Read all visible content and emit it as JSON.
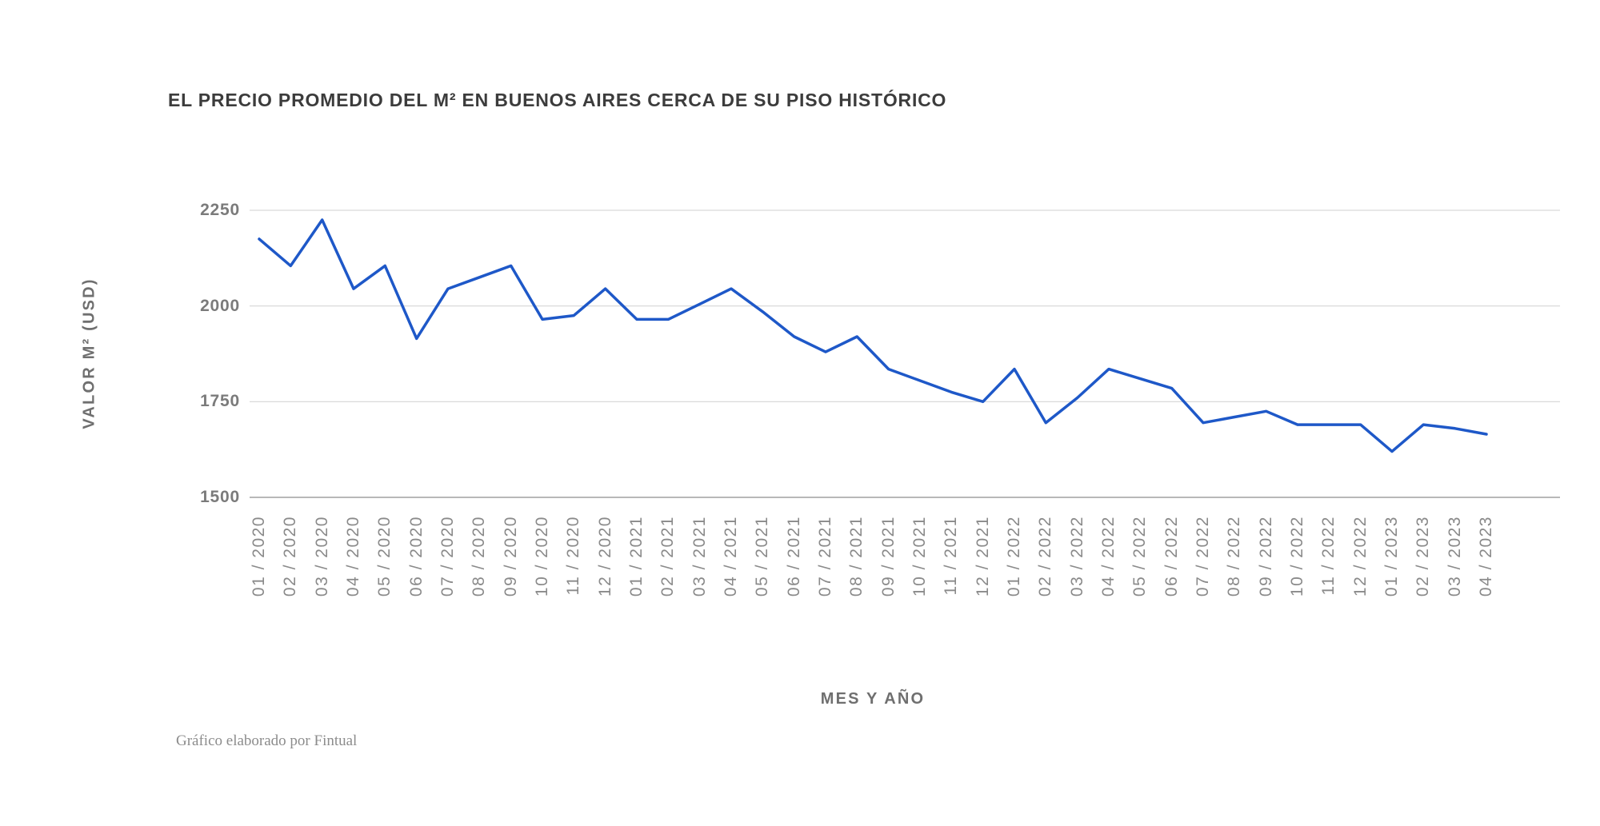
{
  "header": {
    "title": "EL PRECIO PROMEDIO DEL M² EN BUENOS AIRES CERCA DE SU PISO HISTÓRICO"
  },
  "footer": {
    "credit": "Gráfico elaborado por Fintual"
  },
  "colors": {
    "line": "#1E58C8",
    "gridline": "#D9D9D9",
    "axis_base": "#B8B8B8",
    "title_text": "#3C3C3C",
    "axis_title_text": "#6F6F6F",
    "tick_text": "#7B7B7B",
    "footer_text": "#8C8C8C",
    "background": "#FFFFFF"
  },
  "chart_data": {
    "type": "line",
    "title": "EL PRECIO PROMEDIO DEL M² EN BUENOS AIRES CERCA DE SU PISO HISTÓRICO",
    "xlabel": "MES Y AÑO",
    "ylabel": "VALOR M² (USD)",
    "categories": [
      "01 / 2020",
      "02 / 2020",
      "03 / 2020",
      "04 / 2020",
      "05 / 2020",
      "06 / 2020",
      "07 / 2020",
      "08 / 2020",
      "09 / 2020",
      "10 / 2020",
      "11 / 2020",
      "12 / 2020",
      "01 / 2021",
      "02 / 2021",
      "03 / 2021",
      "04 / 2021",
      "05 / 2021",
      "06 / 2021",
      "07 / 2021",
      "08 / 2021",
      "09 / 2021",
      "10 / 2021",
      "11 / 2021",
      "12 / 2021",
      "01 / 2022",
      "02 / 2022",
      "03 / 2022",
      "04 / 2022",
      "05 / 2022",
      "06 / 2022",
      "07 / 2022",
      "08 / 2022",
      "09 / 2022",
      "10 / 2022",
      "11 / 2022",
      "12 / 2022",
      "01 / 2023",
      "02 / 2023",
      "03 / 2023",
      "04 / 2023"
    ],
    "values": [
      2175,
      2105,
      2225,
      2045,
      2105,
      1915,
      2045,
      2075,
      2105,
      1965,
      1975,
      2045,
      1965,
      1965,
      2005,
      2045,
      1985,
      1920,
      1880,
      1920,
      1835,
      1805,
      1775,
      1750,
      1835,
      1695,
      1760,
      1835,
      1810,
      1785,
      1695,
      1710,
      1725,
      1690,
      1690,
      1690,
      1620,
      1690,
      1680,
      1665
    ],
    "yticks": [
      2250,
      2000,
      1750,
      1500
    ],
    "ylim": [
      1500,
      2250
    ],
    "grid": "horizontal",
    "legend": "none",
    "line_color": "#1E58C8"
  }
}
